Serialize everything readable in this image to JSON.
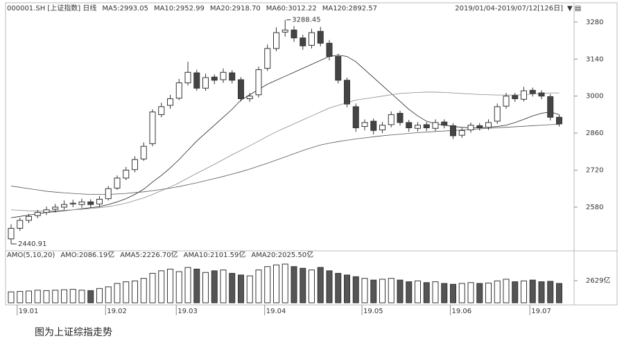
{
  "caption": "图为上证综指走势",
  "chart_data": [
    {
      "type": "candlestick",
      "header": [
        "000001.SH [上证指数] 日线",
        "MA5:2993.05",
        "MA10:2952.99",
        "MA20:2918.70",
        "MA60:3012.22",
        "MA120:2892.57"
      ],
      "range_label": "2019/01/04-2019/07/12[126日]",
      "categories": [
        null,
        "19.01",
        null,
        null,
        null,
        null,
        null,
        null,
        null,
        null,
        null,
        "19.02",
        null,
        null,
        null,
        null,
        null,
        null,
        null,
        "19.03",
        null,
        null,
        null,
        null,
        null,
        null,
        null,
        null,
        null,
        "19.04",
        null,
        null,
        null,
        null,
        null,
        null,
        null,
        null,
        null,
        null,
        "19.05",
        null,
        null,
        null,
        null,
        null,
        null,
        null,
        null,
        null,
        "19.06",
        null,
        null,
        null,
        null,
        null,
        null,
        null,
        null,
        "19.07",
        null,
        null,
        null
      ],
      "open": [
        2460,
        2500,
        2530,
        2548,
        2560,
        2572,
        2580,
        2592,
        2590,
        2600,
        2592,
        2612,
        2652,
        2690,
        2722,
        2762,
        2820,
        2930,
        2965,
        2992,
        3050,
        3088,
        3030,
        3072,
        3062,
        3088,
        3062,
        2990,
        3005,
        3105,
        3180,
        3242,
        3250,
        3220,
        3192,
        3245,
        3200,
        3150,
        3060,
        2960,
        2885,
        2905,
        2872,
        2892,
        2935,
        2900,
        2878,
        2892,
        2878,
        2902,
        2888,
        2852,
        2872,
        2888,
        2882,
        2905,
        2962,
        3002,
        2988,
        3022,
        3012,
        2998,
        2920
      ],
      "high": [
        2515,
        2540,
        2555,
        2570,
        2582,
        2592,
        2605,
        2608,
        2612,
        2610,
        2622,
        2660,
        2700,
        2732,
        2772,
        2825,
        2950,
        2975,
        3005,
        3065,
        3130,
        3100,
        3085,
        3082,
        3105,
        3098,
        3072,
        3012,
        3112,
        3195,
        3260,
        3288.45,
        3265,
        3232,
        3255,
        3262,
        3212,
        3160,
        3070,
        2972,
        2912,
        2915,
        2902,
        2942,
        2945,
        2910,
        2902,
        2902,
        2912,
        2912,
        2898,
        2880,
        2900,
        2898,
        2912,
        2972,
        3012,
        3012,
        3035,
        3032,
        3022,
        3008,
        2930
      ],
      "low": [
        2440.91,
        2490,
        2520,
        2538,
        2550,
        2560,
        2570,
        2580,
        2578,
        2578,
        2582,
        2605,
        2645,
        2682,
        2712,
        2755,
        2810,
        2920,
        2952,
        2985,
        3040,
        3020,
        3020,
        3045,
        3050,
        3048,
        2980,
        2978,
        2995,
        3095,
        3170,
        3225,
        3205,
        3175,
        3180,
        3188,
        3135,
        3048,
        2958,
        2865,
        2870,
        2855,
        2860,
        2882,
        2888,
        2865,
        2866,
        2868,
        2868,
        2878,
        2838,
        2842,
        2862,
        2870,
        2872,
        2895,
        2952,
        2978,
        2980,
        2998,
        2988,
        2908,
        2885
      ],
      "close": [
        2500,
        2530,
        2545,
        2560,
        2570,
        2580,
        2590,
        2595,
        2600,
        2590,
        2610,
        2650,
        2690,
        2720,
        2760,
        2810,
        2940,
        2960,
        2990,
        3050,
        3090,
        3030,
        3070,
        3060,
        3090,
        3060,
        2990,
        3000,
        3100,
        3180,
        3240,
        3250,
        3220,
        3190,
        3240,
        3200,
        3150,
        3060,
        2970,
        2880,
        2900,
        2870,
        2890,
        2930,
        2900,
        2880,
        2890,
        2880,
        2900,
        2890,
        2850,
        2870,
        2890,
        2880,
        2900,
        2960,
        3000,
        2990,
        3020,
        3010,
        3000,
        2920,
        2895
      ],
      "ma_lines": [
        {
          "color": "#222",
          "values": [
            2540,
            2545,
            2550,
            2555,
            2560,
            2563,
            2566,
            2570,
            2574,
            2578,
            2582,
            2590,
            2600,
            2612,
            2628,
            2648,
            2675,
            2700,
            2728,
            2760,
            2795,
            2830,
            2860,
            2890,
            2920,
            2950,
            2985,
            3005,
            3025,
            3045,
            3060,
            3075,
            3090,
            3105,
            3120,
            3135,
            3150,
            3155,
            3150,
            3130,
            3100,
            3070,
            3040,
            3010,
            2980,
            2950,
            2925,
            2905,
            2895,
            2890,
            2885,
            2882,
            2880,
            2880,
            2882,
            2885,
            2890,
            2900,
            2912,
            2925,
            2935,
            2940,
            2930
          ]
        },
        {
          "color": "#888",
          "values": [
            2570,
            2568,
            2566,
            2565,
            2565,
            2566,
            2568,
            2570,
            2572,
            2575,
            2578,
            2582,
            2588,
            2595,
            2605,
            2615,
            2628,
            2642,
            2656,
            2672,
            2690,
            2708,
            2725,
            2742,
            2760,
            2778,
            2795,
            2812,
            2830,
            2848,
            2865,
            2880,
            2895,
            2910,
            2925,
            2940,
            2955,
            2965,
            2975,
            2985,
            2990,
            2995,
            3000,
            3005,
            3010,
            3012,
            3014,
            3015,
            3015,
            3014,
            3012,
            3010,
            3008,
            3006,
            3005,
            3004,
            3004,
            3004,
            3005,
            3008,
            3010,
            3012,
            3012
          ]
        },
        {
          "color": "#555",
          "values": [
            2660,
            2655,
            2650,
            2645,
            2640,
            2637,
            2634,
            2632,
            2630,
            2628,
            2628,
            2628,
            2630,
            2632,
            2635,
            2638,
            2642,
            2647,
            2652,
            2658,
            2665,
            2672,
            2680,
            2688,
            2696,
            2705,
            2714,
            2724,
            2735,
            2746,
            2758,
            2770,
            2782,
            2794,
            2805,
            2815,
            2822,
            2828,
            2833,
            2838,
            2842,
            2846,
            2850,
            2853,
            2856,
            2859,
            2862,
            2864,
            2866,
            2868,
            2870,
            2872,
            2874,
            2876,
            2878,
            2880,
            2882,
            2884,
            2886,
            2888,
            2890,
            2892,
            2893
          ]
        }
      ],
      "ylim": [
        2420,
        3332
      ],
      "yticks": [
        2580,
        2720,
        2860,
        3000,
        3140,
        3280
      ],
      "grid": false
    },
    {
      "type": "bar",
      "header": [
        "AMO(5,10,20)",
        "AMO:2086.19亿",
        "AMA5:2226.70亿",
        "AMA10:2101.59亿",
        "AMA20:2025.50亿"
      ],
      "values": [
        1300,
        1350,
        1400,
        1500,
        1450,
        1500,
        1550,
        1600,
        1500,
        1450,
        1700,
        1900,
        2300,
        2500,
        2600,
        2900,
        3500,
        3800,
        4000,
        3700,
        4200,
        4000,
        3600,
        3800,
        3900,
        3500,
        3300,
        3200,
        3900,
        4300,
        4500,
        4600,
        4300,
        4100,
        3900,
        4200,
        3800,
        3500,
        3300,
        3100,
        2900,
        2700,
        2800,
        2900,
        2700,
        2500,
        2600,
        2400,
        2500,
        2300,
        2200,
        2300,
        2400,
        2300,
        2350,
        2600,
        2800,
        2500,
        2600,
        2700,
        2500,
        2550,
        2300
      ],
      "ylim": [
        0,
        5100
      ],
      "yticks": [
        {
          "value": 2629,
          "label": "2629亿"
        }
      ]
    }
  ]
}
